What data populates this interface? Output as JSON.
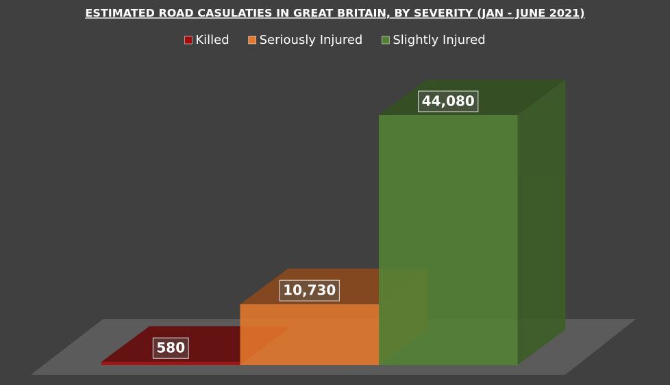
{
  "chart_data": {
    "type": "bar3d",
    "title": "ESTIMATED ROAD CASULATIES IN GREAT BRITAIN, BY SEVERITY (JAN - JUNE 2021)",
    "series": [
      {
        "name": "Killed",
        "color": "#a50d0d",
        "values": [
          580
        ],
        "value_labels": [
          "580"
        ]
      },
      {
        "name": "Seriously Injured",
        "color": "#e4782c",
        "values": [
          10730
        ],
        "value_labels": [
          "10,730"
        ]
      },
      {
        "name": "Slightly Injured",
        "color": "#548235",
        "values": [
          44080
        ],
        "value_labels": [
          "44,080"
        ]
      }
    ],
    "legend": "top"
  }
}
